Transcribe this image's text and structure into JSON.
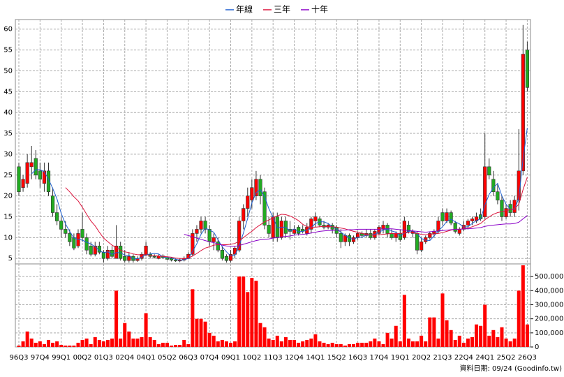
{
  "chart_data": {
    "type": "candlestick",
    "categories": [
      "96Q3",
      null,
      null,
      null,
      null,
      "97Q4",
      null,
      null,
      null,
      null,
      "99Q1",
      null,
      null,
      null,
      null,
      "00Q2",
      null,
      null,
      null,
      null,
      "01Q3",
      null,
      null,
      null,
      null,
      "02Q4",
      null,
      null,
      null,
      null,
      "04Q1",
      null,
      null,
      null,
      null,
      "05Q2",
      null,
      null,
      null,
      null,
      "06Q3",
      null,
      null,
      null,
      null,
      "07Q4",
      null,
      null,
      null,
      null,
      "09Q1",
      null,
      null,
      null,
      null,
      "10Q2",
      null,
      null,
      null,
      null,
      "11Q3",
      null,
      null,
      null,
      null,
      "12Q4",
      null,
      null,
      null,
      null,
      "14Q1",
      null,
      null,
      null,
      null,
      "15Q2",
      null,
      null,
      null,
      null,
      "16Q3",
      null,
      null,
      null,
      null,
      "17Q4",
      null,
      null,
      null,
      null,
      "19Q1",
      null,
      null,
      null,
      null,
      "20Q2",
      null,
      null,
      null,
      null,
      "21Q3",
      null,
      null,
      null,
      null,
      "22Q4",
      null,
      null,
      null,
      null,
      "24Q1",
      null,
      null,
      null,
      null,
      "25Q2",
      null,
      null,
      null,
      null,
      "26Q3"
    ],
    "up_color": "#ff0000",
    "down_color": "#22aa22",
    "open": [
      27,
      22,
      23,
      27,
      29,
      26,
      23,
      26,
      20,
      16,
      14,
      12,
      11,
      10,
      8,
      12,
      10,
      8,
      6,
      8,
      6.5,
      5,
      7,
      5,
      8,
      5.5,
      4.5,
      5.5,
      4.5,
      5,
      6,
      6,
      5.5,
      5,
      5.6,
      5.2,
      5,
      4.6,
      4.4,
      4.6,
      5,
      6,
      11,
      12,
      14,
      12,
      9,
      9,
      7,
      5.5,
      4.5,
      6,
      7,
      14,
      17,
      19,
      20,
      24,
      21,
      13,
      10,
      15,
      10,
      14,
      12,
      11,
      12.5,
      12,
      11,
      12,
      14,
      14.5,
      13,
      12.5,
      13,
      12.5,
      11,
      9,
      10.5,
      9,
      10,
      11,
      10.5,
      11,
      10,
      11,
      12,
      13,
      11,
      10,
      11,
      10,
      13,
      11,
      11,
      7,
      9,
      10,
      11,
      11.5,
      16,
      14,
      16,
      13.5,
      11,
      12,
      13,
      14,
      14,
      15.5,
      15,
      27,
      24,
      21,
      19,
      15,
      18,
      16,
      19,
      26,
      55
    ],
    "high": [
      28,
      25,
      30,
      32,
      31,
      28,
      28,
      28,
      22,
      18,
      15,
      14,
      12,
      11,
      12,
      16,
      11,
      9,
      9,
      9,
      7,
      8,
      8,
      13,
      9,
      7,
      6.5,
      6,
      5.5,
      6.5,
      9,
      6.5,
      6,
      6,
      6,
      5.5,
      5.3,
      5,
      5,
      5.5,
      6.5,
      12,
      13,
      15,
      15,
      13,
      11,
      10,
      8,
      6,
      7,
      8,
      15,
      18,
      22,
      24,
      26,
      25,
      22,
      15,
      16,
      16,
      15,
      15,
      14,
      13,
      13,
      13,
      13.5,
      15,
      16,
      15,
      14,
      13.5,
      13.5,
      13,
      12,
      11,
      11,
      10.5,
      11.5,
      11.5,
      12,
      12,
      12,
      13,
      14,
      13.5,
      12,
      11.5,
      12,
      15,
      14,
      12,
      11.5,
      10,
      10.5,
      11.5,
      12,
      15,
      17,
      17,
      16.5,
      14,
      12.5,
      14,
      14.5,
      15,
      16,
      17,
      35,
      29,
      26,
      23,
      20,
      18,
      19,
      20,
      36,
      61,
      57
    ],
    "low": [
      20,
      21,
      22,
      24,
      24,
      22,
      21,
      20,
      15,
      13,
      10,
      10,
      8,
      7,
      7.5,
      9,
      6,
      5.5,
      5.5,
      6,
      4,
      4.5,
      5,
      5,
      4.5,
      4,
      4,
      4,
      4.2,
      4.5,
      5.5,
      5,
      5,
      4.8,
      5,
      4.6,
      4.3,
      4.2,
      4.1,
      4.3,
      4.8,
      5.5,
      9,
      11,
      11,
      8,
      7,
      6.5,
      4.5,
      4,
      4,
      5,
      6.5,
      12,
      15,
      17,
      19,
      18,
      12,
      10,
      9,
      9,
      9.5,
      10,
      9.5,
      10.5,
      10.5,
      11,
      10.5,
      11,
      12.5,
      12.5,
      12,
      12,
      11,
      10,
      7.5,
      8,
      8,
      8.5,
      9.5,
      10,
      10,
      9.5,
      9.5,
      10.5,
      11,
      10,
      9.5,
      9,
      9,
      9.5,
      11,
      10,
      6,
      6.5,
      8.5,
      9.5,
      10,
      11,
      13,
      13.5,
      13,
      11,
      10.5,
      11.5,
      12,
      13,
      13.5,
      14,
      14.5,
      24,
      20,
      18,
      14,
      14.5,
      15,
      15,
      16.5,
      25,
      45
    ],
    "close": [
      21,
      24,
      28,
      28,
      25,
      24,
      26,
      21,
      16,
      14,
      12,
      11,
      9,
      7.5,
      11,
      10,
      7,
      6,
      8,
      6.5,
      5,
      7,
      5.5,
      8,
      5,
      4.5,
      5.5,
      4.5,
      5,
      6,
      8,
      5.5,
      5.3,
      5.6,
      5.2,
      4.8,
      4.6,
      4.4,
      4.7,
      5,
      6,
      11,
      12,
      14,
      12,
      9,
      10,
      7,
      5,
      4.5,
      6,
      7.5,
      14,
      17,
      20,
      22,
      24,
      20,
      13,
      11,
      15,
      10,
      14,
      11,
      11.5,
      12,
      11,
      11.5,
      12.5,
      14.5,
      15,
      13,
      12.5,
      13,
      12,
      11,
      9,
      10.5,
      9,
      10,
      11,
      10.5,
      11,
      10,
      11.5,
      12.5,
      13,
      11,
      10,
      11,
      9.5,
      14,
      11.5,
      11.5,
      7,
      9,
      10,
      11,
      11.5,
      14,
      14,
      16,
      13.5,
      11.5,
      12,
      13,
      14,
      14.5,
      15,
      14.5,
      27,
      25,
      21,
      19,
      15,
      17,
      16,
      19,
      26,
      54,
      46
    ],
    "lines": [
      {
        "name": "年線",
        "color": "#1e5fd0",
        "values": [
          null,
          null,
          null,
          25.3,
          26.3,
          26.3,
          25.8,
          24,
          21.8,
          19.3,
          15.8,
          13.3,
          11.5,
          9.9,
          9.6,
          9.4,
          8.9,
          8.5,
          7.8,
          6.9,
          6.4,
          6.6,
          6,
          6.4,
          6.4,
          5.8,
          5.8,
          4.9,
          4.9,
          5.3,
          5.9,
          6.1,
          6.2,
          6.1,
          5.4,
          5.2,
          5.1,
          4.8,
          4.6,
          4.7,
          5,
          6.7,
          8.5,
          10.8,
          12.3,
          11.8,
          11.3,
          9.5,
          7.8,
          6.6,
          5.6,
          5.8,
          8,
          11.1,
          14.6,
          18.3,
          20.8,
          21.5,
          19.8,
          17,
          14.8,
          12.3,
          12.5,
          12.5,
          11.6,
          12.1,
          11.4,
          11.5,
          11.8,
          12.4,
          13.4,
          13.8,
          13.8,
          13.4,
          12.6,
          12.1,
          11.3,
          10.6,
          9.9,
          9.6,
          10.1,
          10.1,
          10.6,
          10.6,
          10.8,
          11.3,
          11.8,
          12,
          11.6,
          11.3,
          10.4,
          11.1,
          11.5,
          11.6,
          11,
          9.8,
          9.4,
          9.3,
          10.4,
          11.6,
          12.6,
          13.9,
          14.4,
          13.8,
          13.3,
          12.5,
          12.6,
          13.4,
          14.1,
          14.5,
          17.8,
          20.4,
          21.9,
          23,
          20,
          18,
          16.8,
          16.8,
          19.5,
          28.8,
          36.3
        ]
      },
      {
        "name": "三年",
        "color": "#dc143c",
        "values": [
          null,
          null,
          null,
          null,
          null,
          null,
          null,
          null,
          null,
          null,
          null,
          22,
          21,
          19.8,
          18.8,
          17.3,
          15.6,
          14,
          12.8,
          11.3,
          9.9,
          9,
          8.2,
          7.6,
          7,
          6.6,
          6.4,
          6.1,
          5.9,
          5.9,
          5.9,
          5.8,
          5.7,
          5.6,
          5.5,
          5.4,
          5.3,
          5.1,
          5,
          5,
          5.1,
          5.6,
          6.2,
          6.9,
          7.5,
          7.8,
          8.2,
          8.3,
          8.3,
          8.3,
          8.4,
          8.6,
          9.2,
          10,
          10.8,
          11.5,
          12.4,
          13.1,
          13.8,
          14.2,
          14.8,
          15.2,
          15.6,
          15.5,
          15.2,
          14.7,
          14.1,
          13.2,
          12.6,
          12.5,
          12.5,
          12.6,
          12.7,
          12.6,
          12.6,
          12.5,
          12.3,
          12.1,
          11.8,
          11.5,
          11.3,
          11,
          10.8,
          10.6,
          10.6,
          10.7,
          10.8,
          10.9,
          11,
          11,
          11,
          11.1,
          11.2,
          11.2,
          11,
          10.8,
          10.7,
          10.8,
          10.9,
          11,
          11.2,
          11.5,
          11.8,
          12,
          12,
          12.1,
          12.3,
          12.6,
          13,
          13.4,
          14.3,
          15,
          15.6,
          16,
          16.2,
          16.5,
          16.7,
          17,
          18,
          21.5,
          24.5
        ]
      },
      {
        "name": "十年",
        "color": "#8a00c8",
        "values": [
          null,
          null,
          null,
          null,
          null,
          null,
          null,
          null,
          null,
          null,
          null,
          null,
          null,
          null,
          null,
          null,
          null,
          null,
          null,
          null,
          null,
          null,
          null,
          null,
          null,
          null,
          null,
          null,
          null,
          null,
          null,
          null,
          null,
          null,
          null,
          null,
          null,
          null,
          null,
          10.8,
          10.5,
          10.2,
          9.9,
          9.6,
          9.3,
          9,
          8.8,
          8.5,
          8.2,
          8,
          7.9,
          7.9,
          8.1,
          8.4,
          8.7,
          9,
          9.3,
          9.5,
          9.6,
          9.7,
          9.9,
          10,
          10.2,
          10.3,
          10.4,
          10.6,
          10.7,
          10.8,
          10.9,
          11.1,
          11.3,
          11.5,
          11.6,
          11.7,
          11.7,
          11.8,
          11.8,
          11.8,
          11.9,
          11.9,
          12,
          12,
          12,
          12,
          12,
          12,
          12.1,
          12.1,
          12.1,
          12,
          11.9,
          11.8,
          11.7,
          11.6,
          11.5,
          11.4,
          11.3,
          11.4,
          11.5,
          11.6,
          11.7,
          11.8,
          11.9,
          12,
          12,
          12.1,
          12.1,
          12.2,
          12.3,
          12.4,
          12.7,
          12.9,
          13,
          13.1,
          13.2,
          13.3,
          13.3,
          13.4,
          13.7,
          14.5,
          15.3
        ]
      }
    ],
    "volume": {
      "axis": "y2",
      "color": "#ff0000",
      "values": [
        10000,
        40000,
        110000,
        60000,
        30000,
        40000,
        20000,
        50000,
        30000,
        40000,
        15000,
        10000,
        10000,
        10000,
        30000,
        50000,
        60000,
        20000,
        70000,
        50000,
        40000,
        50000,
        60000,
        400000,
        60000,
        170000,
        110000,
        60000,
        60000,
        70000,
        240000,
        70000,
        50000,
        20000,
        30000,
        30000,
        10000,
        15000,
        15000,
        50000,
        20000,
        410000,
        200000,
        200000,
        180000,
        100000,
        80000,
        40000,
        50000,
        40000,
        30000,
        40000,
        500000,
        500000,
        390000,
        490000,
        470000,
        170000,
        140000,
        60000,
        50000,
        80000,
        40000,
        70000,
        50000,
        50000,
        30000,
        40000,
        50000,
        60000,
        90000,
        40000,
        30000,
        20000,
        30000,
        20000,
        20000,
        10000,
        20000,
        20000,
        30000,
        30000,
        30000,
        40000,
        60000,
        40000,
        20000,
        100000,
        60000,
        150000,
        40000,
        370000,
        60000,
        40000,
        40000,
        80000,
        40000,
        210000,
        210000,
        60000,
        380000,
        190000,
        120000,
        50000,
        80000,
        30000,
        60000,
        70000,
        160000,
        150000,
        300000,
        80000,
        120000,
        70000,
        140000,
        60000,
        40000,
        60000,
        400000,
        580000,
        160000
      ]
    },
    "ylim": [
      3.7,
      62.3
    ],
    "yticks": [
      5,
      10,
      15,
      20,
      25,
      30,
      35,
      40,
      45,
      50,
      55,
      60
    ],
    "y2lim": [
      0,
      590000
    ],
    "y2ticks": [
      0,
      {
        "value": 100000,
        "label": "100,000"
      },
      {
        "value": 200000,
        "label": "200,000"
      },
      {
        "value": 300000,
        "label": "300,000"
      },
      {
        "value": 400000,
        "label": "400,000"
      },
      {
        "value": 500000,
        "label": "500,000"
      }
    ],
    "grid": true,
    "legend": "top",
    "note": "資料日期: 09/24 (Goodinfo.tw)"
  }
}
